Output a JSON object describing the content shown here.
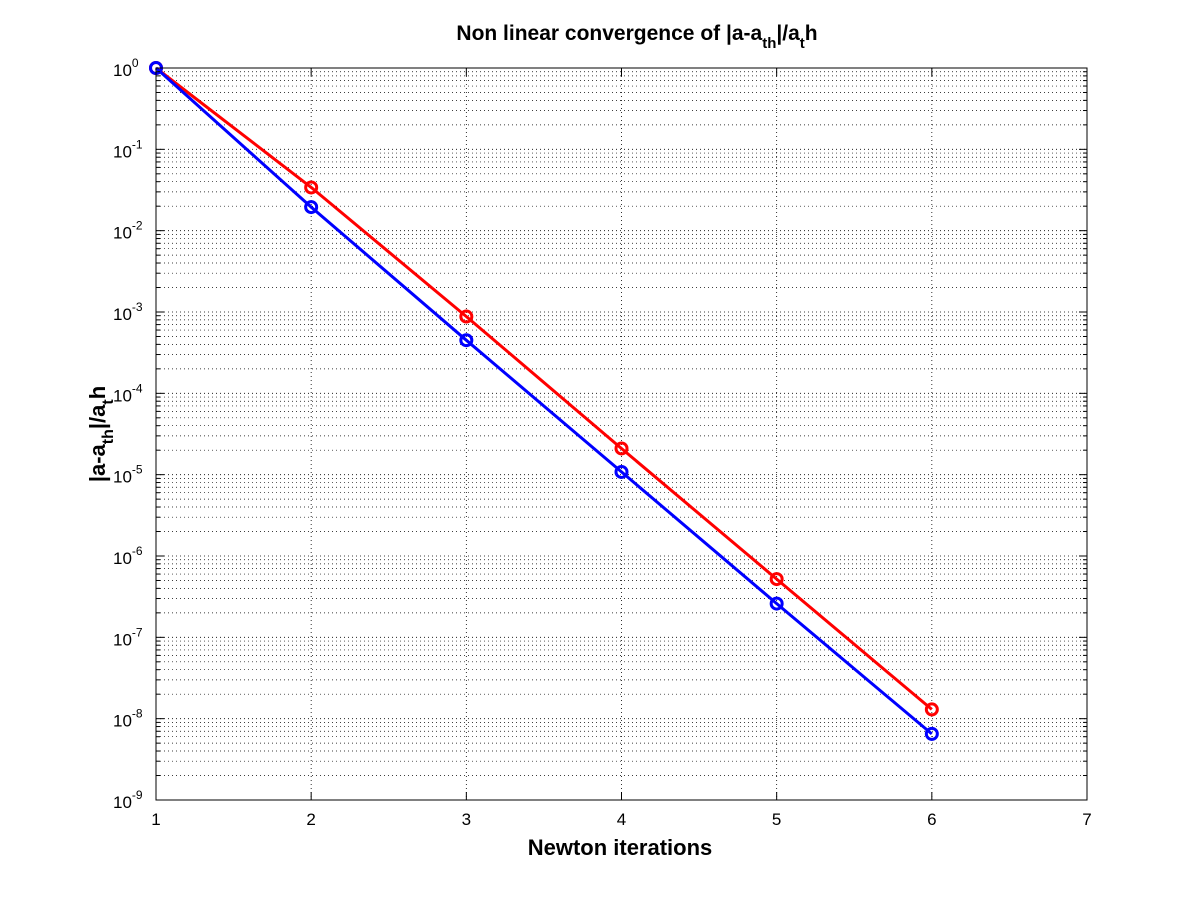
{
  "chart_data": {
    "type": "line",
    "title": "Non linear convergence of |a-a_th|/a_t h",
    "title_parts": {
      "base": "Non linear convergence of |a-a",
      "sub1": "th",
      "mid": "|/a",
      "sub2": "t",
      "end": "h"
    },
    "xlabel": "Newton iterations",
    "ylabel": "|a-a_th|/a_t h",
    "ylabel_parts": {
      "base": "|a-a",
      "sub1": "th",
      "mid": "|/a",
      "sub2": "t",
      "end": "h"
    },
    "yscale": "log",
    "xlim": [
      1,
      7
    ],
    "ylim": [
      1e-09,
      1
    ],
    "x_ticks": [
      "1",
      "2",
      "3",
      "4",
      "5",
      "6",
      "7"
    ],
    "y_ticks": [
      {
        "base": "10",
        "exp": "0"
      },
      {
        "base": "10",
        "exp": "-1"
      },
      {
        "base": "10",
        "exp": "-2"
      },
      {
        "base": "10",
        "exp": "-3"
      },
      {
        "base": "10",
        "exp": "-4"
      },
      {
        "base": "10",
        "exp": "-5"
      },
      {
        "base": "10",
        "exp": "-6"
      },
      {
        "base": "10",
        "exp": "-7"
      },
      {
        "base": "10",
        "exp": "-8"
      },
      {
        "base": "10",
        "exp": "-9"
      }
    ],
    "grid": "major and minor (dotted)",
    "legend": "none",
    "series": [
      {
        "color": "#ff0000",
        "marker": "circle",
        "x": [
          1,
          2,
          3,
          4,
          5,
          6
        ],
        "y": [
          1.0,
          0.034,
          0.00088,
          2.1e-05,
          5.2e-07,
          1.3e-08
        ]
      },
      {
        "color": "#0000ff",
        "marker": "circle",
        "x": [
          1,
          2,
          3,
          4,
          5,
          6
        ],
        "y": [
          1.0,
          0.0195,
          0.00045,
          1.08e-05,
          2.6e-07,
          6.5e-09
        ]
      }
    ]
  }
}
